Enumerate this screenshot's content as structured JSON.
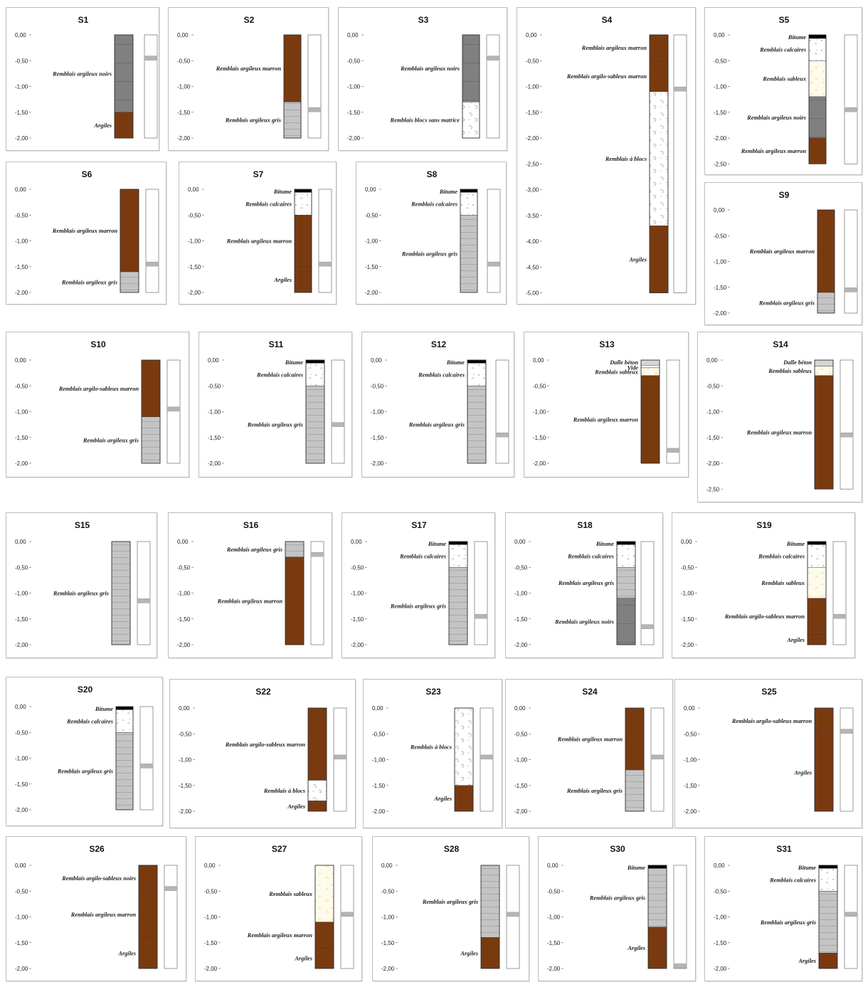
{
  "colors": {
    "marron": "#7a3a10",
    "noirs": "#808080",
    "gris": "#c4c4c4",
    "calcaires": "#ffffff",
    "sableux": "#fffbea",
    "bitume": "#000000",
    "dalle": "#d6d6d6",
    "vide": "#ffffff",
    "blocs": "#ffffff",
    "water": "#b5b5b5"
  },
  "panels": [
    {
      "title": "S1",
      "ticks": [
        "0,00",
        "-0,50",
        "-1,00",
        "-1,50",
        "-2,00"
      ],
      "water": -0.45,
      "layers": [
        {
          "label": "Remblais argileux noirs",
          "top": 0,
          "bottom": -1.5,
          "type": "noirs"
        },
        {
          "label": "Argiles",
          "top": -1.5,
          "bottom": -2.0,
          "type": "marron"
        }
      ]
    },
    {
      "title": "S2",
      "ticks": [
        "0,00",
        "-0,50",
        "-1,00",
        "-1,50",
        "-2,00"
      ],
      "water": -1.45,
      "layers": [
        {
          "label": "Remblais argileux marron",
          "top": 0,
          "bottom": -1.3,
          "type": "marron"
        },
        {
          "label": "Remblais argileux gris",
          "top": -1.3,
          "bottom": -2.0,
          "type": "gris"
        }
      ]
    },
    {
      "title": "S3",
      "ticks": [
        "0,00",
        "-0,50",
        "-1,00",
        "-1,50",
        "-2,00"
      ],
      "water": -0.45,
      "layers": [
        {
          "label": "Remblais argileux noirs",
          "top": 0,
          "bottom": -1.3,
          "type": "noirs"
        },
        {
          "label": "Remblais blocs sans matrice",
          "top": -1.3,
          "bottom": -2.0,
          "type": "blocs"
        }
      ]
    },
    {
      "title": "S4",
      "ticks": [
        "0,00",
        "-0,50",
        "-1,00",
        "-1,50",
        "-2,00",
        "-2,50",
        "-3,00",
        "-3,50",
        "-4,00",
        "-4,50",
        "-5,00"
      ],
      "water": -1.05,
      "layers": [
        {
          "label": "Remblais argileux marron",
          "top": 0,
          "bottom": -0.5,
          "type": "marron"
        },
        {
          "label": "Remblais argilo-sableux marron",
          "top": -0.5,
          "bottom": -1.1,
          "type": "marron"
        },
        {
          "label": "Remblais à blocs",
          "top": -1.1,
          "bottom": -3.7,
          "type": "blocs"
        },
        {
          "label": "Argiles",
          "top": -3.7,
          "bottom": -5.0,
          "type": "marron"
        }
      ]
    },
    {
      "title": "S5",
      "ticks": [
        "0,00",
        "-0,50",
        "-1,00",
        "-1,50",
        "-2,00",
        "-2,50"
      ],
      "water": -1.45,
      "layers": [
        {
          "label": "Bitume",
          "top": 0,
          "bottom": -0.07,
          "type": "bitume"
        },
        {
          "label": "Remblais calcaires",
          "top": -0.07,
          "bottom": -0.5,
          "type": "calcaires"
        },
        {
          "label": "Remblais sableux",
          "top": -0.5,
          "bottom": -1.2,
          "type": "sableux"
        },
        {
          "label": "Remblais argileux noirs",
          "top": -1.2,
          "bottom": -2.0,
          "type": "noirs"
        },
        {
          "label": "Remblais argileux marron",
          "top": -2.0,
          "bottom": -2.5,
          "type": "marron"
        }
      ]
    },
    {
      "title": "S6",
      "ticks": [
        "0,00",
        "-0,50",
        "-1,00",
        "-1,50",
        "-2,00"
      ],
      "water": -1.45,
      "layers": [
        {
          "label": "Remblais argileux marron",
          "top": 0,
          "bottom": -1.6,
          "type": "marron"
        },
        {
          "label": "Remblais argileux gris",
          "top": -1.6,
          "bottom": -2.0,
          "type": "gris"
        }
      ]
    },
    {
      "title": "S7",
      "ticks": [
        "0,00",
        "-0,50",
        "-1,00",
        "-1,50",
        "-2,00"
      ],
      "water": -1.45,
      "layers": [
        {
          "label": "Bitume",
          "top": 0,
          "bottom": -0.06,
          "type": "bitume"
        },
        {
          "label": "Remblais calcaires",
          "top": -0.06,
          "bottom": -0.5,
          "type": "calcaires"
        },
        {
          "label": "Remblais argileux marron",
          "top": -0.5,
          "bottom": -1.5,
          "type": "marron"
        },
        {
          "label": "Argiles",
          "top": -1.5,
          "bottom": -2.0,
          "type": "marron"
        }
      ]
    },
    {
      "title": "S8",
      "ticks": [
        "0,00",
        "-0,50",
        "-1,00",
        "-1,50",
        "-2,00"
      ],
      "water": -1.45,
      "layers": [
        {
          "label": "Bitume",
          "top": 0,
          "bottom": -0.06,
          "type": "bitume"
        },
        {
          "label": "Remblais calcaires",
          "top": -0.06,
          "bottom": -0.5,
          "type": "calcaires"
        },
        {
          "label": "Remblais argileux gris",
          "top": -0.5,
          "bottom": -2.0,
          "type": "gris"
        }
      ]
    },
    {
      "title": "S9",
      "ticks": [
        "0,00",
        "-0,50",
        "-1,00",
        "-1,50",
        "-2,00"
      ],
      "water": -1.55,
      "layers": [
        {
          "label": "Remblais argileux marron",
          "top": 0,
          "bottom": -1.6,
          "type": "marron"
        },
        {
          "label": "Remblais argileux gris",
          "top": -1.6,
          "bottom": -2.0,
          "type": "gris"
        }
      ]
    },
    {
      "title": "S10",
      "ticks": [
        "0,00",
        "-0,50",
        "-1,00",
        "-1,50",
        "-2,00"
      ],
      "water": -0.95,
      "layers": [
        {
          "label": "Remblais argilo-sableux marron",
          "top": 0,
          "bottom": -1.1,
          "type": "marron"
        },
        {
          "label": "Remblais argileux gris",
          "top": -1.1,
          "bottom": -2.0,
          "type": "gris"
        }
      ]
    },
    {
      "title": "S11",
      "ticks": [
        "0,00",
        "-0,50",
        "-1,00",
        "-1,50",
        "-2,00"
      ],
      "water": -1.25,
      "layers": [
        {
          "label": "Bitume",
          "top": 0,
          "bottom": -0.06,
          "type": "bitume"
        },
        {
          "label": "Remblais calcaires",
          "top": -0.06,
          "bottom": -0.5,
          "type": "calcaires"
        },
        {
          "label": "Remblais argileux gris",
          "top": -0.5,
          "bottom": -2.0,
          "type": "gris"
        }
      ]
    },
    {
      "title": "S12",
      "ticks": [
        "0,00",
        "-0,50",
        "-1,00",
        "-1,50",
        "-2,00"
      ],
      "water": -1.45,
      "layers": [
        {
          "label": "Bitume",
          "top": 0,
          "bottom": -0.06,
          "type": "bitume"
        },
        {
          "label": "Remblais calcaires",
          "top": -0.06,
          "bottom": -0.5,
          "type": "calcaires"
        },
        {
          "label": "Remblais argileux gris",
          "top": -0.5,
          "bottom": -2.0,
          "type": "gris"
        }
      ]
    },
    {
      "title": "S13",
      "ticks": [
        "0,00",
        "-0,50",
        "-1,00",
        "-1,50",
        "-2,00"
      ],
      "water": -1.75,
      "layers": [
        {
          "label": "Dalle béton",
          "top": 0,
          "bottom": -0.1,
          "type": "dalle"
        },
        {
          "label": "Vide",
          "top": -0.1,
          "bottom": -0.15,
          "type": "vide"
        },
        {
          "label": "Remblais sableux",
          "top": -0.15,
          "bottom": -0.3,
          "type": "sableux"
        },
        {
          "label": "Remblais argileux marron",
          "top": -0.3,
          "bottom": -2.0,
          "type": "marron"
        }
      ]
    },
    {
      "title": "S14",
      "ticks": [
        "0,00",
        "-0,50",
        "-1,00",
        "-1,50",
        "-2,00",
        "-2,50"
      ],
      "water": -1.45,
      "layers": [
        {
          "label": "Dalle béton",
          "top": 0,
          "bottom": -0.12,
          "type": "dalle"
        },
        {
          "label": "Remblais sableux",
          "top": -0.12,
          "bottom": -0.3,
          "type": "sableux"
        },
        {
          "label": "Remblais argileux marron",
          "top": -0.3,
          "bottom": -2.5,
          "type": "marron"
        }
      ]
    },
    {
      "title": "S15",
      "ticks": [
        "0,00",
        "-0,50",
        "-1,00",
        "-1,50",
        "-2,00"
      ],
      "water": -1.15,
      "layers": [
        {
          "label": "Remblais argileux gris",
          "top": 0,
          "bottom": -2.0,
          "type": "gris"
        }
      ]
    },
    {
      "title": "S16",
      "ticks": [
        "0,00",
        "-0,50",
        "-1,00",
        "-1,50",
        "-2,00"
      ],
      "water": -0.25,
      "layers": [
        {
          "label": "Remblais argileux gris",
          "top": 0,
          "bottom": -0.3,
          "type": "gris"
        },
        {
          "label": "Remblais argileux marron",
          "top": -0.3,
          "bottom": -2.0,
          "type": "marron"
        }
      ]
    },
    {
      "title": "S17",
      "ticks": [
        "0,00",
        "-0,50",
        "-1,00",
        "-1,50",
        "-2,00"
      ],
      "water": -1.45,
      "layers": [
        {
          "label": "Bitume",
          "top": 0,
          "bottom": -0.06,
          "type": "bitume"
        },
        {
          "label": "Remblais calcaires",
          "top": -0.06,
          "bottom": -0.5,
          "type": "calcaires"
        },
        {
          "label": "Remblais argileux gris",
          "top": -0.5,
          "bottom": -2.0,
          "type": "gris"
        }
      ]
    },
    {
      "title": "S18",
      "ticks": [
        "0,00",
        "-0,50",
        "-1,00",
        "-1,50",
        "-2,00"
      ],
      "water": -1.65,
      "layers": [
        {
          "label": "Bitume",
          "top": 0,
          "bottom": -0.06,
          "type": "bitume"
        },
        {
          "label": "Remblais calcaires",
          "top": -0.06,
          "bottom": -0.5,
          "type": "calcaires"
        },
        {
          "label": "Remblais argileux gris",
          "top": -0.5,
          "bottom": -1.1,
          "type": "gris"
        },
        {
          "label": "Remblais argileux noirs",
          "top": -1.1,
          "bottom": -2.0,
          "type": "noirs"
        }
      ]
    },
    {
      "title": "S19",
      "ticks": [
        "0,00",
        "-0,50",
        "-1,00",
        "-1,50",
        "-2,00"
      ],
      "water": -1.45,
      "layers": [
        {
          "label": "Bitume",
          "top": 0,
          "bottom": -0.06,
          "type": "bitume"
        },
        {
          "label": "Remblais calcaires",
          "top": -0.06,
          "bottom": -0.5,
          "type": "calcaires"
        },
        {
          "label": "Remblais sableux",
          "top": -0.5,
          "bottom": -1.1,
          "type": "sableux"
        },
        {
          "label": "Remblais argilo-sableux marron",
          "top": -1.1,
          "bottom": -1.8,
          "type": "marron"
        },
        {
          "label": "Argiles",
          "top": -1.8,
          "bottom": -2.0,
          "type": "marron"
        }
      ]
    },
    {
      "title": "S20",
      "ticks": [
        "0,00",
        "-0,50",
        "-1,00",
        "-1,50",
        "-2,00"
      ],
      "water": -1.15,
      "layers": [
        {
          "label": "Bitume",
          "top": 0,
          "bottom": -0.06,
          "type": "bitume"
        },
        {
          "label": "Remblais calcaires",
          "top": -0.06,
          "bottom": -0.5,
          "type": "calcaires"
        },
        {
          "label": "Remblais argileux gris",
          "top": -0.5,
          "bottom": -2.0,
          "type": "gris"
        }
      ]
    },
    {
      "title": "S22",
      "ticks": [
        "0,00",
        "-0,50",
        "-1,00",
        "-1,50",
        "-2,00"
      ],
      "water": -0.95,
      "layers": [
        {
          "label": "Remblais argilo-sableux marron",
          "top": 0,
          "bottom": -1.4,
          "type": "marron"
        },
        {
          "label": "Remblais à blocs",
          "top": -1.4,
          "bottom": -1.8,
          "type": "blocs"
        },
        {
          "label": "Argiles",
          "top": -1.8,
          "bottom": -2.0,
          "type": "marron"
        }
      ]
    },
    {
      "title": "S23",
      "ticks": [
        "0,00",
        "-0,50",
        "-1,00",
        "-1,50",
        "-2,00"
      ],
      "water": -0.95,
      "layers": [
        {
          "label": "Remblais à blocs",
          "top": 0,
          "bottom": -1.5,
          "type": "blocs"
        },
        {
          "label": "Argiles",
          "top": -1.5,
          "bottom": -2.0,
          "type": "marron"
        }
      ]
    },
    {
      "title": "S24",
      "ticks": [
        "0,00",
        "-0,50",
        "-1,00",
        "-1,50",
        "-2,00"
      ],
      "water": -0.95,
      "layers": [
        {
          "label": "Remblais argileux marron",
          "top": 0,
          "bottom": -1.2,
          "type": "marron"
        },
        {
          "label": "Remblais argileux gris",
          "top": -1.2,
          "bottom": -2.0,
          "type": "gris"
        }
      ]
    },
    {
      "title": "S25",
      "ticks": [
        "0,00",
        "-0,50",
        "-1,00",
        "-1,50",
        "-2,00"
      ],
      "water": -0.45,
      "layers": [
        {
          "label": "Remblais argilo-sableux marron",
          "top": 0,
          "bottom": -0.5,
          "type": "marron"
        },
        {
          "label": "Argiles",
          "top": -0.5,
          "bottom": -2.0,
          "type": "marron"
        }
      ]
    },
    {
      "title": "S26",
      "ticks": [
        "0,00",
        "-0,50",
        "-1,00",
        "-1,50",
        "-2,00"
      ],
      "water": -0.45,
      "layers": [
        {
          "label": "Remblais argilo-sableux noirs",
          "top": 0,
          "bottom": -0.5,
          "type": "marron"
        },
        {
          "label": "Remblais argileux marron",
          "top": -0.5,
          "bottom": -1.4,
          "type": "marron"
        },
        {
          "label": "Argiles",
          "top": -1.4,
          "bottom": -2.0,
          "type": "marron"
        }
      ]
    },
    {
      "title": "S27",
      "ticks": [
        "0,00",
        "-0,50",
        "-1,00",
        "-1,50",
        "-2,00"
      ],
      "water": -0.95,
      "layers": [
        {
          "label": "Remblais sableux",
          "top": 0,
          "bottom": -1.1,
          "type": "sableux"
        },
        {
          "label": "Remblais argileux marron",
          "top": -1.1,
          "bottom": -1.6,
          "type": "marron"
        },
        {
          "label": "Argiles",
          "top": -1.6,
          "bottom": -2.0,
          "type": "marron"
        }
      ]
    },
    {
      "title": "S28",
      "ticks": [
        "0,00",
        "-0,50",
        "-1,00",
        "-1,50",
        "-2,00"
      ],
      "water": -0.95,
      "layers": [
        {
          "label": "Remblais argileux gris",
          "top": 0,
          "bottom": -1.4,
          "type": "gris"
        },
        {
          "label": "Argiles",
          "top": -1.4,
          "bottom": -2.0,
          "type": "marron"
        }
      ]
    },
    {
      "title": "S30",
      "ticks": [
        "0,00",
        "-0,50",
        "-1,00",
        "-1,50",
        "-2,00"
      ],
      "water": -1.95,
      "layers": [
        {
          "label": "Bitume",
          "top": 0,
          "bottom": -0.06,
          "type": "bitume"
        },
        {
          "label": "Remblais argileux gris",
          "top": -0.06,
          "bottom": -1.2,
          "type": "gris"
        },
        {
          "label": "Argiles",
          "top": -1.2,
          "bottom": -2.0,
          "type": "marron"
        }
      ]
    },
    {
      "title": "S31",
      "ticks": [
        "0,00",
        "-0,50",
        "-1,00",
        "-1,50",
        "-2,00"
      ],
      "water": -0.95,
      "layers": [
        {
          "label": "Bitume",
          "top": 0,
          "bottom": -0.06,
          "type": "bitume"
        },
        {
          "label": "Remblais calcaires",
          "top": -0.06,
          "bottom": -0.5,
          "type": "calcaires"
        },
        {
          "label": "Remblais argileux gris",
          "top": -0.5,
          "bottom": -1.7,
          "type": "gris"
        },
        {
          "label": "Argiles",
          "top": -1.7,
          "bottom": -2.0,
          "type": "marron"
        }
      ]
    }
  ]
}
